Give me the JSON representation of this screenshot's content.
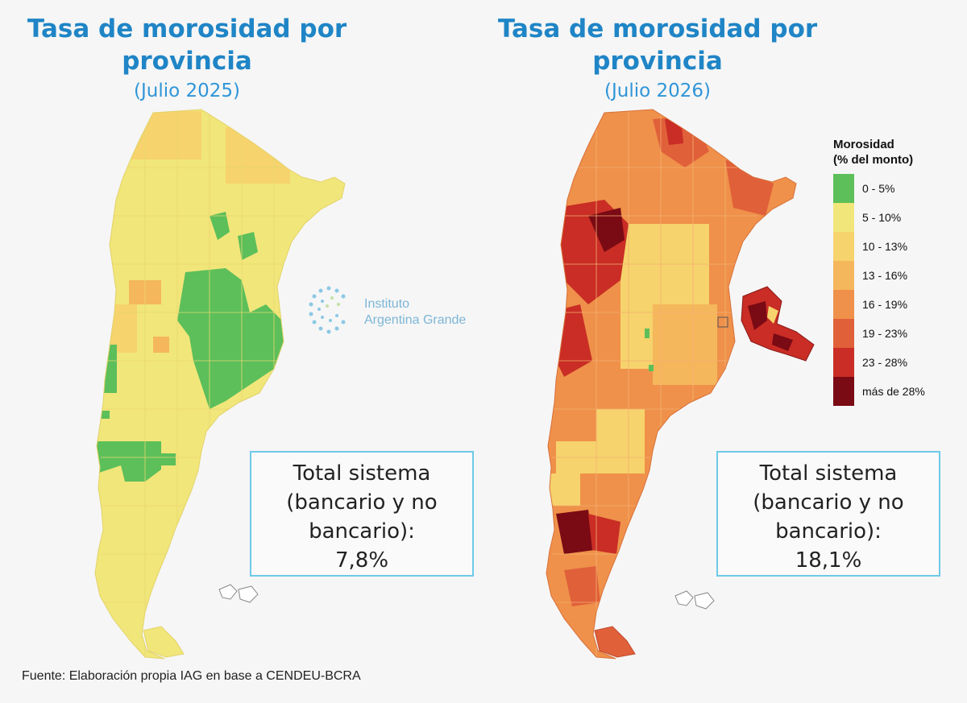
{
  "left_panel": {
    "title_line1": "Tasa de morosidad por",
    "title_line2": "provincia",
    "subtitle": "(Julio 2025)",
    "total_line1": "Total sistema",
    "total_line2": "(bancario y no",
    "total_line3": "bancario):",
    "total_value": "7,8%"
  },
  "right_panel": {
    "title_line1": "Tasa de morosidad por",
    "title_line2": "provincia",
    "subtitle": "(Julio 2026)",
    "total_line1": "Total sistema",
    "total_line2": "(bancario y no",
    "total_line3": "bancario):",
    "total_value": "18,1%"
  },
  "legend": {
    "title_line1": "Morosidad",
    "title_line2": "(% del monto)",
    "items": [
      {
        "label": "0 - 5%",
        "color": "#5cbf5a"
      },
      {
        "label": "5 - 10%",
        "color": "#f1e67a"
      },
      {
        "label": "10 - 13%",
        "color": "#f6d36c"
      },
      {
        "label": "13 - 16%",
        "color": "#f5b75c"
      },
      {
        "label": "16 - 19%",
        "color": "#ef914a"
      },
      {
        "label": "19 - 23%",
        "color": "#e0603a"
      },
      {
        "label": "23 - 28%",
        "color": "#c92d25"
      },
      {
        "label": "más de 28%",
        "color": "#7a0a14"
      }
    ]
  },
  "watermark": {
    "line1": "Instituto",
    "line2": "Argentina Grande"
  },
  "source": "Fuente: Elaboración propia IAG en base a  CENDEU-BCRA"
}
